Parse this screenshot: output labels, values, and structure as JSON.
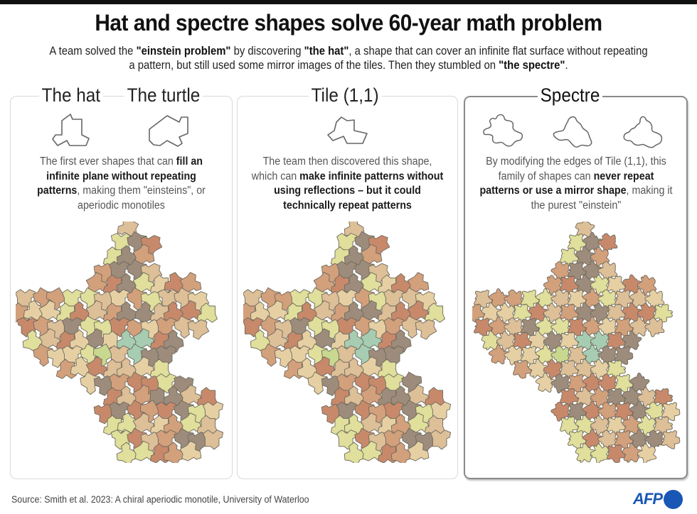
{
  "header": {
    "title": "Hat and spectre shapes solve 60-year math problem",
    "subtitle_parts": [
      {
        "text": "A  team solved the ",
        "bold": false
      },
      {
        "text": "\"einstein problem\"",
        "bold": true
      },
      {
        "text": " by discovering ",
        "bold": false
      },
      {
        "text": "\"the hat\"",
        "bold": true
      },
      {
        "text": ", a shape that can cover an infinite flat surface without repeating a pattern, but still used some mirror images of the tiles. Then they stumbled on ",
        "bold": false
      },
      {
        "text": "\"the spectre\"",
        "bold": true
      },
      {
        "text": ".",
        "bold": false
      }
    ]
  },
  "panels": [
    {
      "titles": [
        "The hat",
        "The turtle"
      ],
      "icons": [
        "hat-shape-icon",
        "turtle-shape-icon"
      ],
      "description_parts": [
        {
          "text": "The first ever shapes that can ",
          "bold": false
        },
        {
          "text": "fill an infinite plane without repeating patterns",
          "bold": true
        },
        {
          "text": ", making them \"einsteins\", or aperiodic monotiles",
          "bold": false
        }
      ],
      "tiling": "hat-tiling"
    },
    {
      "titles": [
        "Tile (1,1)"
      ],
      "icons": [
        "tile-1-1-shape-icon"
      ],
      "description_parts": [
        {
          "text": "The team then discovered this shape, which can ",
          "bold": false
        },
        {
          "text": "make infinite patterns without using reflections – but it could technically repeat patterns",
          "bold": true
        }
      ],
      "tiling": "tile-1-1-tiling"
    },
    {
      "titles": [
        "Spectre"
      ],
      "icons": [
        "spectre-shape-icon-1",
        "spectre-shape-icon-2",
        "spectre-shape-icon-3"
      ],
      "description_parts": [
        {
          "text": "By modifying the edges of Tile (1,1), this family of shapes can ",
          "bold": false
        },
        {
          "text": "never repeat patterns or use a mirror shape",
          "bold": true
        },
        {
          "text": ", making it the purest \"einstein\"",
          "bold": false
        }
      ],
      "tiling": "spectre-tiling"
    }
  ],
  "palette": {
    "tan": "#e6d0a3",
    "light_tan": "#ddbf98",
    "terracotta": "#c8896b",
    "salmon": "#d3a07c",
    "grey_brown": "#9d8c7b",
    "yellow_green": "#e0df9b",
    "green": "#c8d98f",
    "teal": "#a6cdb2",
    "outline": "#6e6a5e",
    "accent_blue": "#1857b6"
  },
  "footer": {
    "source": "Source: Smith et al. 2023: A chiral aperiodic monotile, University of Waterloo",
    "logo": "AFP"
  }
}
